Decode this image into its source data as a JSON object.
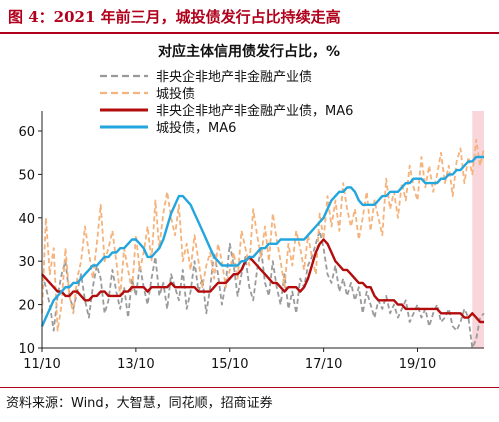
{
  "figure_title": "图 4：2021 年前三月，城投债发行占比持续走高",
  "source": "资料来源：Wind，大智慧，同花顺，招商证券",
  "colors": {
    "title": "#b1001b",
    "central_soe_non_re_non_fin": "#9a9a9a",
    "chengtou": "#f5b27a",
    "central_soe_ma6": "#b30c0c",
    "chengtou_ma6": "#22a6dd",
    "highlight": "#f9d6dc"
  },
  "chart_data": {
    "type": "line",
    "title": "对应主体信用债发行占比，%",
    "xlabel": "",
    "ylabel": "",
    "x_ticks": [
      "11/10",
      "13/10",
      "15/10",
      "17/10",
      "19/10"
    ],
    "x_tick_months": [
      0,
      24,
      48,
      72,
      96
    ],
    "x_start": "2011-10",
    "x_end": "2021-03",
    "ylim": [
      10,
      60
    ],
    "y_ticks": [
      10,
      20,
      30,
      40,
      50,
      60
    ],
    "legend_position": "top-left",
    "highlight_region": {
      "from": "2020-12",
      "to": "2021-03"
    },
    "series": [
      {
        "name": "非央企非地产非金融产业债",
        "style": "dashed",
        "color": "#9a9a9a",
        "values": [
          27,
          24,
          20,
          14,
          22,
          27,
          30,
          22,
          19,
          23,
          27,
          21,
          17,
          24,
          29,
          26,
          18,
          21,
          28,
          23,
          19,
          24,
          17,
          26,
          22,
          29,
          24,
          20,
          26,
          31,
          22,
          25,
          19,
          27,
          24,
          21,
          28,
          19,
          23,
          30,
          23,
          26,
          18,
          24,
          32,
          27,
          20,
          25,
          34,
          29,
          22,
          27,
          31,
          24,
          21,
          28,
          33,
          25,
          22,
          30,
          24,
          20,
          27,
          19,
          23,
          18,
          26,
          24,
          29,
          31,
          34,
          37,
          33,
          27,
          25,
          29,
          23,
          26,
          22,
          25,
          21,
          24,
          18,
          23,
          20,
          17,
          21,
          19,
          22,
          18,
          20,
          17,
          19,
          21,
          16,
          18,
          20,
          17,
          19,
          15,
          18,
          20,
          16,
          17,
          19,
          15,
          14,
          16,
          19,
          17,
          10,
          12,
          17,
          18
        ]
      },
      {
        "name": "城投债",
        "style": "dashed",
        "color": "#f5b27a",
        "values": [
          18,
          40,
          27,
          33,
          14,
          20,
          33,
          22,
          18,
          26,
          30,
          38,
          32,
          26,
          34,
          43,
          30,
          33,
          37,
          30,
          22,
          33,
          28,
          23,
          36,
          28,
          32,
          38,
          30,
          44,
          33,
          41,
          46,
          40,
          36,
          43,
          30,
          34,
          28,
          36,
          30,
          24,
          29,
          32,
          26,
          34,
          30,
          24,
          28,
          32,
          26,
          37,
          33,
          29,
          42,
          36,
          31,
          38,
          30,
          41,
          35,
          30,
          24,
          34,
          29,
          37,
          33,
          28,
          36,
          31,
          27,
          41,
          35,
          45,
          38,
          44,
          37,
          48,
          42,
          38,
          42,
          35,
          40,
          46,
          37,
          44,
          40,
          36,
          49,
          42,
          46,
          40,
          48,
          44,
          52,
          47,
          44,
          54,
          47,
          52,
          46,
          50,
          55,
          48,
          52,
          45,
          53,
          56,
          48,
          54,
          50,
          58,
          52,
          56
        ]
      },
      {
        "name": "非央企非地产非金融产业债，MA6",
        "style": "solid",
        "color": "#b30c0c",
        "values": [
          27,
          26,
          25,
          24,
          23,
          23,
          22,
          22,
          23,
          23,
          22,
          21,
          21,
          22,
          22,
          23,
          23,
          22,
          22,
          22,
          22,
          23,
          23,
          24,
          24,
          24,
          24,
          23,
          24,
          24,
          24,
          24,
          24,
          25,
          24,
          24,
          24,
          24,
          24,
          24,
          23,
          23,
          23,
          23,
          24,
          25,
          25,
          25,
          26,
          27,
          27,
          28,
          30,
          31,
          30,
          29,
          28,
          27,
          26,
          25,
          25,
          24,
          23,
          24,
          24,
          24,
          23,
          24,
          26,
          29,
          32,
          34,
          35,
          34,
          32,
          30,
          29,
          28,
          28,
          27,
          26,
          25,
          25,
          24,
          24,
          22,
          21,
          21,
          21,
          21,
          21,
          20,
          20,
          19,
          19,
          19,
          19,
          19,
          19,
          19,
          19,
          19,
          18,
          18,
          18,
          18,
          18,
          18,
          17,
          17,
          18,
          17,
          16,
          16
        ]
      },
      {
        "name": "城投债，MA6",
        "style": "solid",
        "color": "#22a6dd",
        "values": [
          15,
          17,
          19,
          21,
          22,
          23,
          24,
          24,
          25,
          25,
          26,
          27,
          28,
          29,
          29,
          30,
          31,
          31,
          32,
          32,
          33,
          33,
          34,
          35,
          35,
          34,
          33,
          31,
          31,
          32,
          33,
          35,
          38,
          41,
          43,
          45,
          45,
          44,
          43,
          41,
          39,
          37,
          35,
          33,
          31,
          30,
          29,
          29,
          29,
          29,
          29,
          30,
          30,
          31,
          31,
          32,
          33,
          33,
          34,
          34,
          34,
          35,
          35,
          35,
          35,
          35,
          35,
          35,
          36,
          37,
          38,
          39,
          40,
          42,
          44,
          45,
          46,
          46,
          47,
          47,
          46,
          44,
          43,
          43,
          43,
          43,
          44,
          45,
          45,
          46,
          46,
          46,
          47,
          48,
          48,
          49,
          49,
          49,
          48,
          48,
          48,
          48,
          49,
          49,
          50,
          50,
          51,
          51,
          52,
          53,
          53,
          54,
          54,
          54
        ]
      }
    ]
  }
}
